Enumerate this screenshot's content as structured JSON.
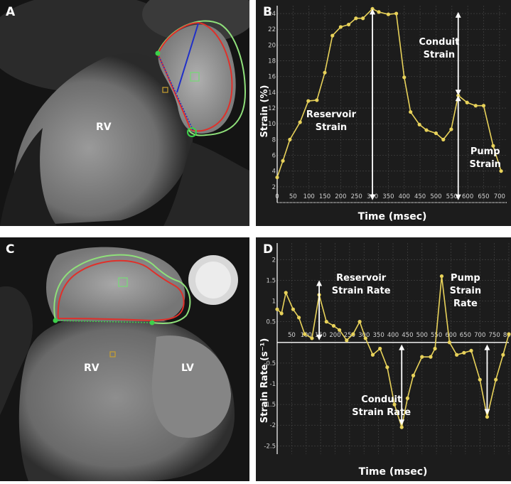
{
  "panels": {
    "a": {
      "letter": "A",
      "label_rv": "RV",
      "colors": {
        "epi": "#8fe07a",
        "endo": "#e0302a",
        "axis": "#2030c8",
        "marker": "#c8a030"
      }
    },
    "c": {
      "letter": "C",
      "label_rv": "RV",
      "label_lv": "LV",
      "colors": {
        "epi": "#8fe07a",
        "endo": "#e0302a",
        "marker": "#c8a030"
      }
    }
  },
  "chart_data": [
    {
      "panel_letter": "B",
      "type": "line",
      "xlabel": "Time (msec)",
      "ylabel": "Strain (%)",
      "xlim": [
        0,
        725
      ],
      "ylim": [
        0,
        25
      ],
      "xticks": [
        0,
        50,
        100,
        150,
        200,
        250,
        300,
        350,
        400,
        450,
        500,
        550,
        600,
        650,
        700
      ],
      "yticks": [
        2,
        4,
        6,
        8,
        10,
        12,
        14,
        16,
        18,
        20,
        22,
        24
      ],
      "grid": true,
      "background": "#1c1c1c",
      "line_color": "#e8d25a",
      "series": [
        {
          "x": [
            0,
            18,
            40,
            72,
            98,
            125,
            150,
            174,
            200,
            225,
            248,
            270,
            300,
            320,
            350,
            375,
            400,
            420,
            448,
            470,
            500,
            523,
            548,
            570,
            598,
            625,
            650,
            680,
            705
          ],
          "y": [
            3.2,
            5.3,
            8.0,
            10.2,
            12.9,
            13.0,
            16.5,
            21.2,
            22.3,
            22.6,
            23.4,
            23.4,
            24.6,
            24.2,
            23.9,
            24.0,
            15.9,
            11.5,
            9.9,
            9.2,
            8.8,
            8.0,
            9.3,
            13.6,
            12.7,
            12.3,
            12.3,
            7.2,
            4.0
          ]
        }
      ],
      "annotations": [
        {
          "text_lines": [
            "Reservoir",
            "Strain"
          ]
        },
        {
          "text_lines": [
            "Conduit",
            "Strain"
          ]
        },
        {
          "text_lines": [
            "Pump",
            "Strain"
          ]
        }
      ]
    },
    {
      "panel_letter": "D",
      "type": "line",
      "xlabel": "Time (msec)",
      "ylabel": "Strain Rate (s⁻¹)",
      "xlim": [
        0,
        800
      ],
      "ylim": [
        -2.7,
        2.4
      ],
      "xticks": [
        50,
        100,
        150,
        200,
        250,
        300,
        350,
        400,
        450,
        500,
        550,
        600,
        650,
        700,
        750,
        800
      ],
      "yticks": [
        2,
        1.5,
        1,
        0.5,
        -0.5,
        -1,
        -1.5,
        -2,
        -2.5
      ],
      "grid": true,
      "background": "#1c1c1c",
      "line_color": "#e8d25a",
      "series": [
        {
          "x": [
            0,
            15,
            30,
            55,
            75,
            95,
            120,
            145,
            170,
            195,
            215,
            240,
            262,
            285,
            305,
            330,
            355,
            380,
            405,
            430,
            450,
            470,
            500,
            530,
            545,
            568,
            595,
            620,
            645,
            670,
            700,
            725,
            755,
            780,
            800
          ],
          "y": [
            0.8,
            0.7,
            1.2,
            0.8,
            0.6,
            0.2,
            0.1,
            1.15,
            0.5,
            0.4,
            0.3,
            0.05,
            0.2,
            0.5,
            0.1,
            -0.3,
            -0.15,
            -0.6,
            -1.5,
            -2.05,
            -1.35,
            -0.8,
            -0.35,
            -0.35,
            -0.15,
            1.6,
            0.0,
            -0.3,
            -0.25,
            -0.2,
            -0.9,
            -1.8,
            -0.9,
            -0.3,
            0.2
          ]
        }
      ],
      "annotations": [
        {
          "text_lines": [
            "Reservoir",
            "Strain Rate"
          ]
        },
        {
          "text_lines": [
            "Pump",
            "Strain",
            "Rate"
          ]
        },
        {
          "text_lines": [
            "Conduit",
            "Strain Rate"
          ]
        }
      ]
    }
  ]
}
